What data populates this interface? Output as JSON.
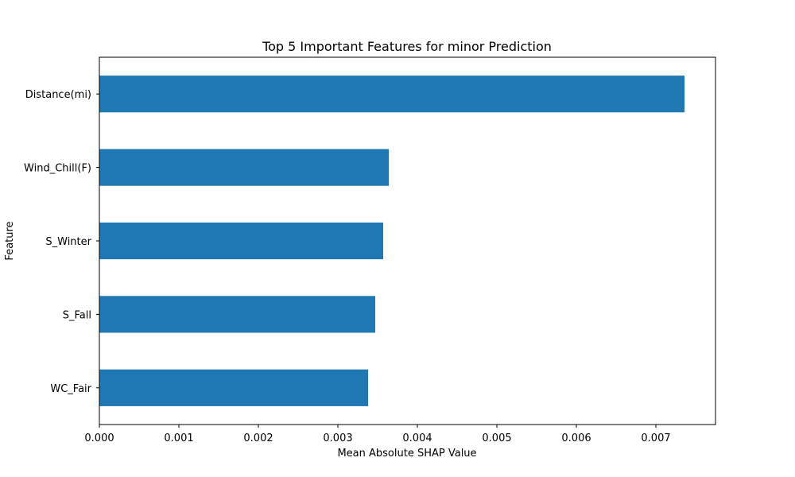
{
  "chart_data": {
    "type": "bar",
    "orientation": "horizontal",
    "title": "Top 5 Important Features for minor Prediction",
    "xlabel": "Mean Absolute SHAP Value",
    "ylabel": "Feature",
    "categories": [
      "Distance(mi)",
      "Wind_Chill(F)",
      "S_Winter",
      "S_Fall",
      "WC_Fair"
    ],
    "values": [
      0.00736,
      0.00364,
      0.00357,
      0.00347,
      0.00338
    ],
    "xlim": [
      0,
      0.00775
    ],
    "xticks": [
      "0.000",
      "0.001",
      "0.002",
      "0.003",
      "0.004",
      "0.005",
      "0.006",
      "0.007"
    ],
    "grid": false,
    "legend": "none",
    "colors": {
      "bar": "#1f77b4",
      "axis": "#000000"
    }
  }
}
